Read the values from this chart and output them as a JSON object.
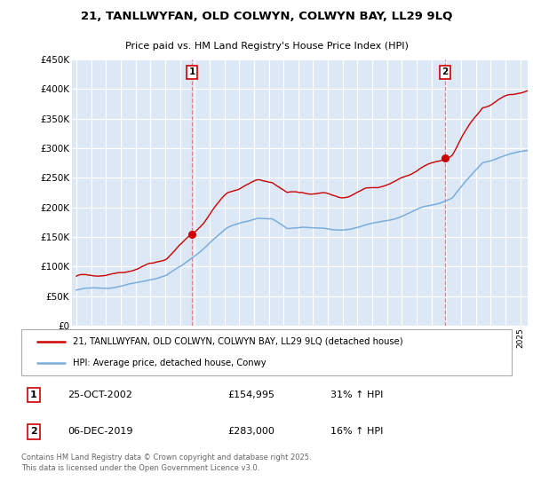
{
  "title": "21, TANLLWYFAN, OLD COLWYN, COLWYN BAY, LL29 9LQ",
  "subtitle": "Price paid vs. HM Land Registry's House Price Index (HPI)",
  "legend_line1": "21, TANLLWYFAN, OLD COLWYN, COLWYN BAY, LL29 9LQ (detached house)",
  "legend_line2": "HPI: Average price, detached house, Conwy",
  "annotation1_label": "1",
  "annotation1_date": "25-OCT-2002",
  "annotation1_price": "£154,995",
  "annotation1_hpi": "31% ↑ HPI",
  "annotation2_label": "2",
  "annotation2_date": "06-DEC-2019",
  "annotation2_price": "£283,000",
  "annotation2_hpi": "16% ↑ HPI",
  "footer": "Contains HM Land Registry data © Crown copyright and database right 2025.\nThis data is licensed under the Open Government Licence v3.0.",
  "ylim": [
    0,
    450000
  ],
  "yticks": [
    0,
    50000,
    100000,
    150000,
    200000,
    250000,
    300000,
    350000,
    400000,
    450000
  ],
  "ytick_labels": [
    "£0",
    "£50K",
    "£100K",
    "£150K",
    "£200K",
    "£250K",
    "£300K",
    "£350K",
    "£400K",
    "£450K"
  ],
  "red_color": "#cc0000",
  "blue_color": "#7aaddc",
  "dashed_color": "#e08080",
  "background_color": "#dce8f5",
  "sale1_x": 2002.81,
  "sale1_y": 154995,
  "sale2_x": 2019.92,
  "sale2_y": 283000,
  "xmin": 1995,
  "xmax": 2025.5
}
